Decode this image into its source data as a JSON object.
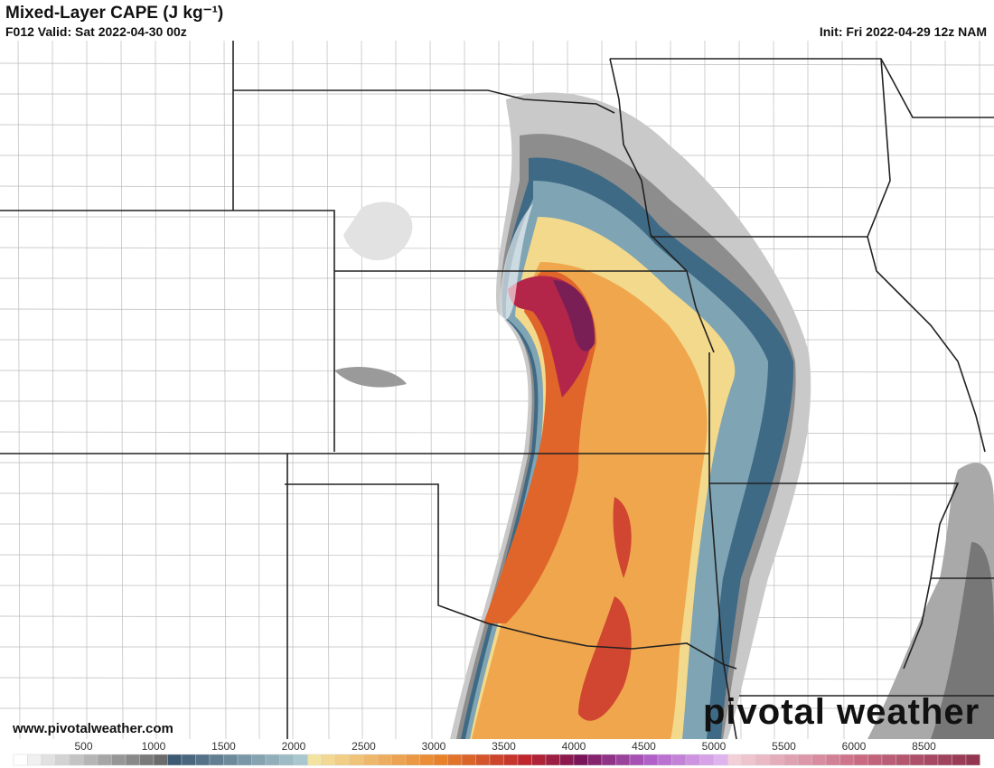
{
  "header": {
    "title": "Mixed-Layer CAPE (J kg⁻¹)",
    "valid": "F012 Valid: Sat 2022-04-30 00z",
    "init": "Init: Fri 2022-04-29 12z NAM"
  },
  "footer": {
    "website": "www.pivotalweather.com",
    "logo": "pivotal weather"
  },
  "colorbar": {
    "labels": [
      "500",
      "1000",
      "1500",
      "2000",
      "2500",
      "3000",
      "3500",
      "4000",
      "4500",
      "5000",
      "5500",
      "6000",
      "8500"
    ]
  }
}
